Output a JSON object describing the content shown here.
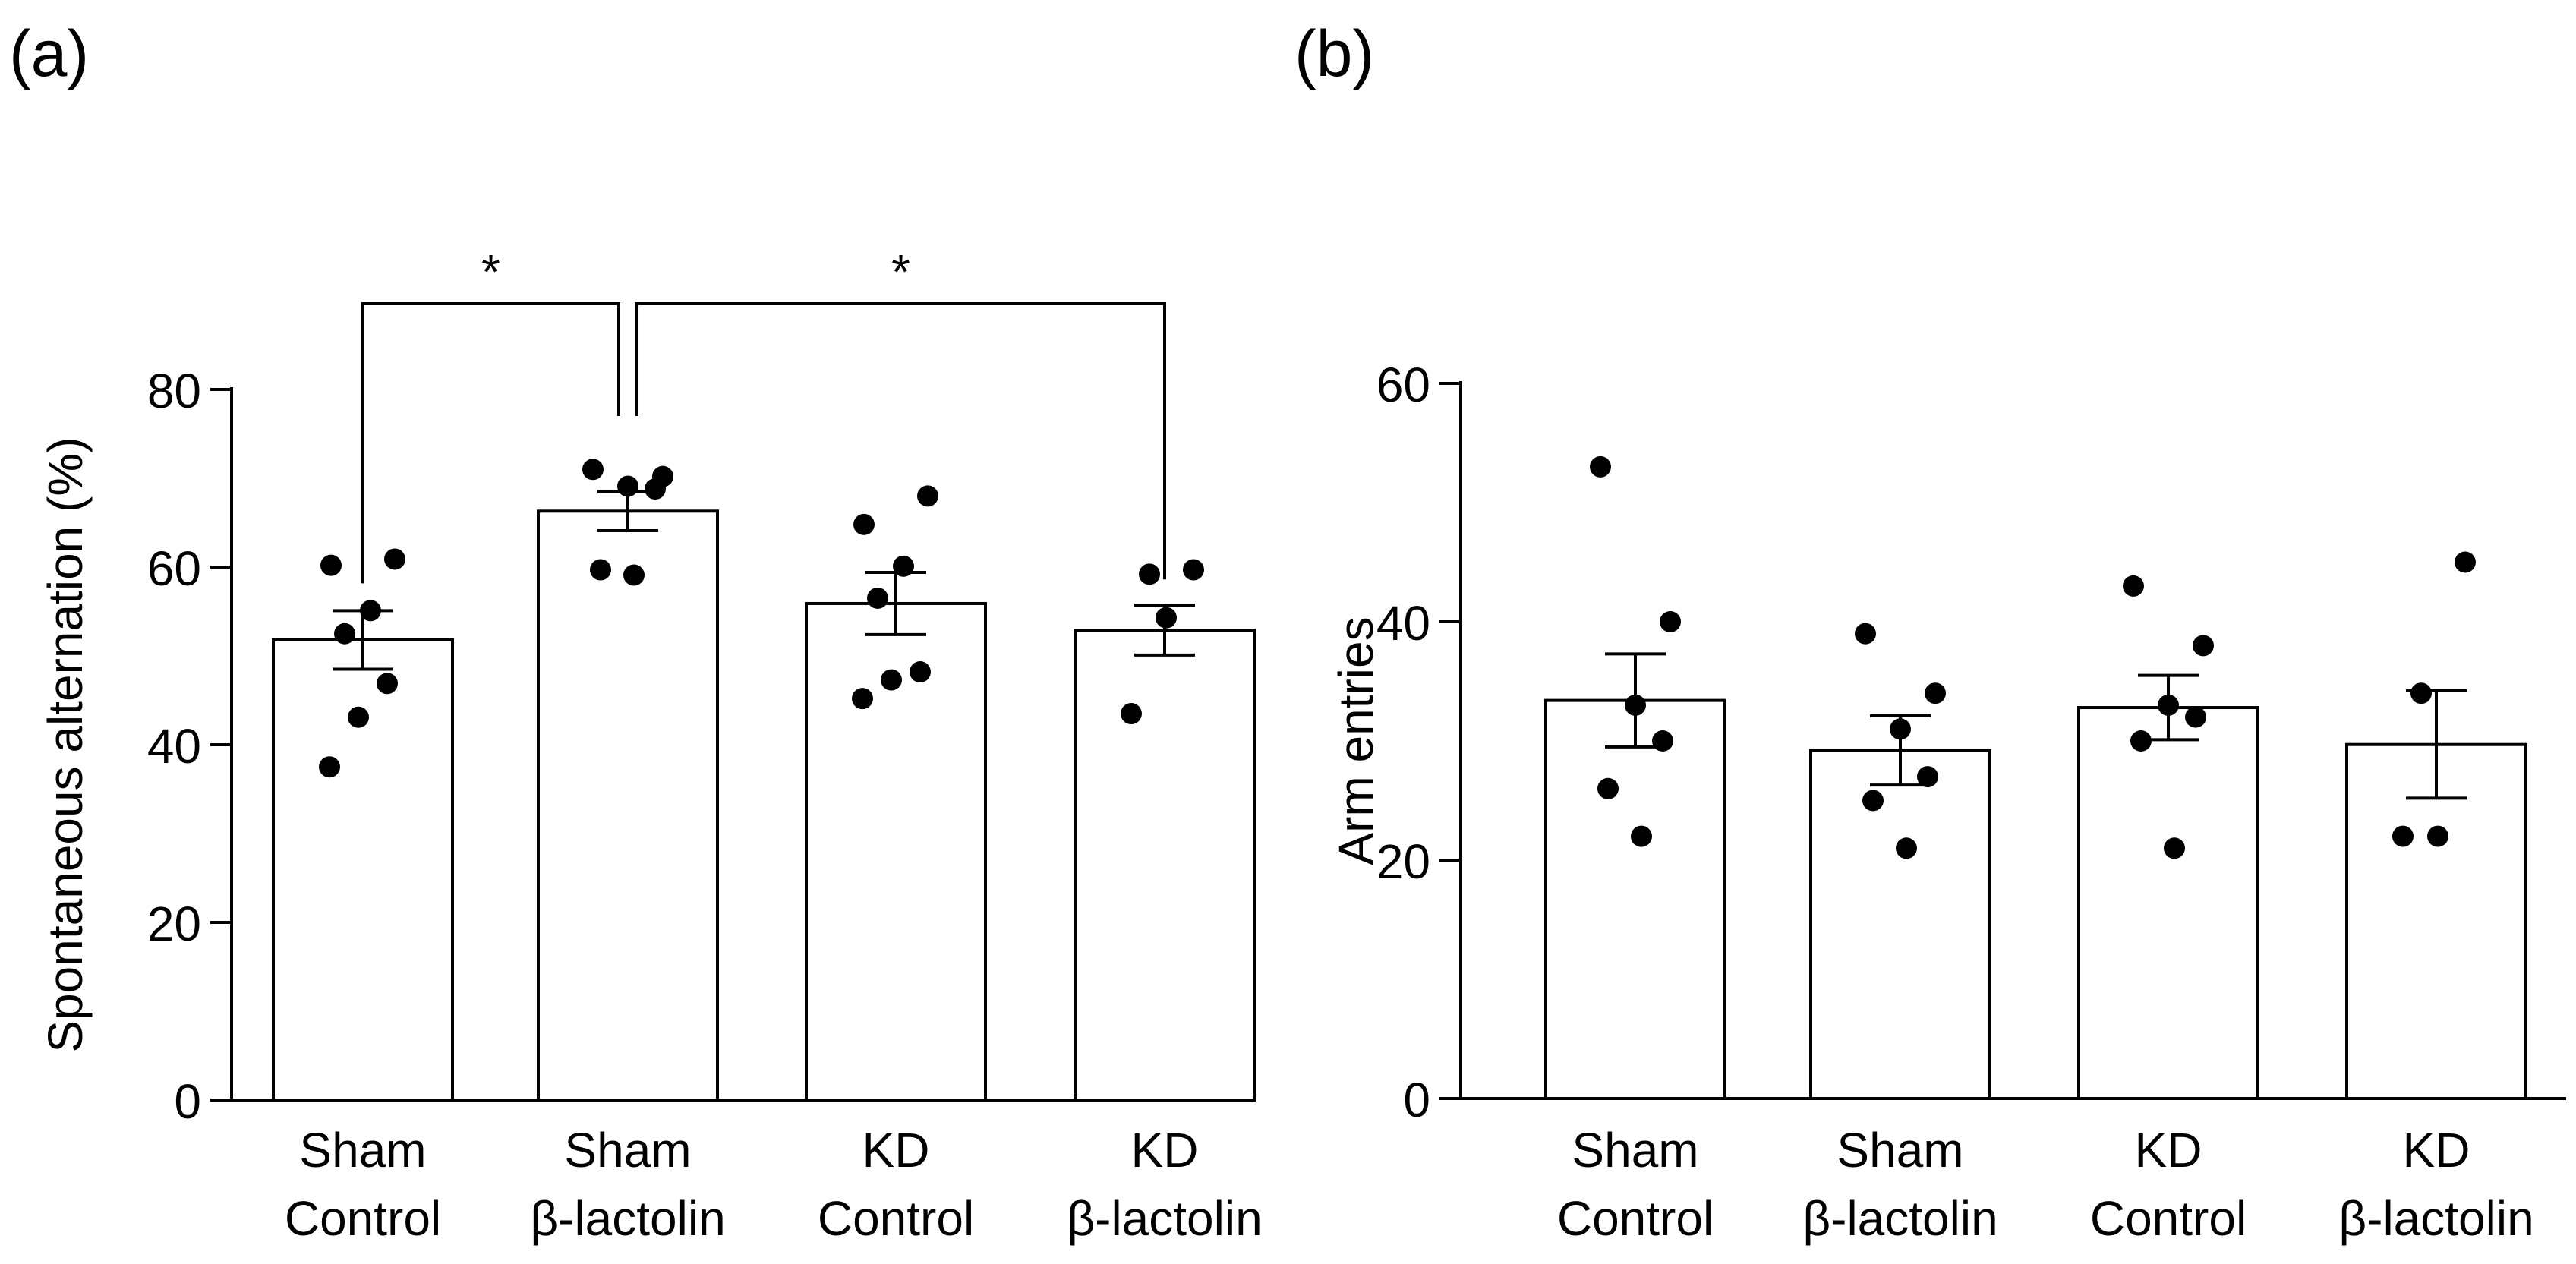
{
  "colors": {
    "ink": "#000000",
    "bar_fill": "#ffffff",
    "background": "#ffffff"
  },
  "chart_data": [
    {
      "panel": "(a)",
      "type": "bar",
      "title": "",
      "xlabel": "",
      "ylabel": "Spontaneous alternation (%)",
      "ylim": [
        0,
        80
      ],
      "yticks": [
        0,
        20,
        40,
        60,
        80
      ],
      "grid": false,
      "categories": [
        {
          "line1": "Sham",
          "line2": "Control"
        },
        {
          "line1": "Sham",
          "line2": "β-lactolin"
        },
        {
          "line1": "KD",
          "line2": "Control"
        },
        {
          "line1": "KD",
          "line2": "β-lactolin"
        }
      ],
      "means": [
        51.8,
        66.3,
        55.9,
        52.9
      ],
      "sem": [
        3.3,
        2.2,
        3.5,
        2.8
      ],
      "points": [
        [
          60.9,
          60.2,
          55.1,
          52.5,
          46.9,
          43.1,
          37.5
        ],
        [
          71.0,
          70.2,
          69.1,
          68.8,
          59.7,
          59.1
        ],
        [
          68.0,
          64.8,
          60.1,
          56.5,
          48.2,
          47.3,
          45.2
        ],
        [
          59.7,
          59.2,
          54.3,
          43.5
        ]
      ],
      "significance": [
        {
          "from": 0,
          "to": 1,
          "label": "*"
        },
        {
          "from": 1,
          "to": 3,
          "label": "*"
        }
      ]
    },
    {
      "panel": "(b)",
      "type": "bar",
      "title": "",
      "xlabel": "",
      "ylabel": "Arm entries",
      "ylim": [
        0,
        60
      ],
      "yticks": [
        0,
        20,
        40,
        60
      ],
      "grid": false,
      "categories": [
        {
          "line1": "Sham",
          "line2": "Control"
        },
        {
          "line1": "Sham",
          "line2": "β-lactolin"
        },
        {
          "line1": "KD",
          "line2": "Control"
        },
        {
          "line1": "KD",
          "line2": "β-lactolin"
        }
      ],
      "means": [
        33.4,
        29.2,
        32.8,
        29.7
      ],
      "sem": [
        3.9,
        2.9,
        2.7,
        4.5
      ],
      "points": [
        [
          53,
          40,
          33,
          30,
          26,
          22
        ],
        [
          39,
          34,
          31,
          27,
          25,
          21
        ],
        [
          43,
          38,
          33,
          32,
          30,
          21
        ],
        [
          45,
          34,
          22,
          22
        ]
      ],
      "significance": []
    }
  ]
}
